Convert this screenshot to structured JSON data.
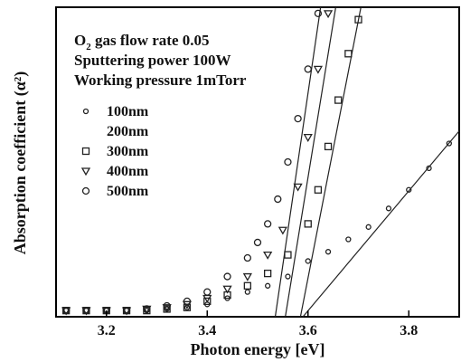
{
  "chart_data": {
    "type": "scatter",
    "title": "",
    "xlabel": "Photon energy [eV]",
    "ylabel": "Absorption coefficient (α²)",
    "xlim": [
      3.1,
      3.9
    ],
    "ylim": [
      0,
      1
    ],
    "x_ticks": [
      3.2,
      3.4,
      3.6,
      3.8
    ],
    "x_tick_labels": [
      "3.2",
      "3.4",
      "3.6",
      "3.8"
    ],
    "grid": false,
    "legend_position": "upper-left",
    "annotations": [
      {
        "prefix": "O",
        "subscript": "2",
        "suffix": " gas flow rate 0.05"
      },
      {
        "text": "Sputtering power 100W"
      },
      {
        "text": "Working pressure 1mTorr"
      }
    ],
    "series": [
      {
        "name": "100nm",
        "marker": "circle-small",
        "x": [
          3.12,
          3.16,
          3.2,
          3.24,
          3.28,
          3.32,
          3.36,
          3.4,
          3.44,
          3.48,
          3.52,
          3.56,
          3.6,
          3.64,
          3.68,
          3.72,
          3.76,
          3.8,
          3.84,
          3.88
        ],
        "y": [
          0.02,
          0.02,
          0.02,
          0.02,
          0.02,
          0.025,
          0.03,
          0.04,
          0.06,
          0.08,
          0.1,
          0.13,
          0.18,
          0.21,
          0.25,
          0.29,
          0.35,
          0.41,
          0.48,
          0.56
        ],
        "fit_line": {
          "x": [
            3.59,
            3.9
          ],
          "y": [
            0.0,
            0.6
          ]
        }
      },
      {
        "name": "200nm",
        "marker": "none",
        "x": [],
        "y": []
      },
      {
        "name": "300nm",
        "marker": "square",
        "x": [
          3.12,
          3.16,
          3.2,
          3.24,
          3.28,
          3.32,
          3.36,
          3.4,
          3.44,
          3.48,
          3.52,
          3.56,
          3.6,
          3.62,
          3.64,
          3.66,
          3.68,
          3.7
        ],
        "y": [
          0.02,
          0.02,
          0.02,
          0.02,
          0.02,
          0.025,
          0.03,
          0.05,
          0.07,
          0.1,
          0.14,
          0.2,
          0.3,
          0.41,
          0.55,
          0.7,
          0.85,
          0.96
        ],
        "fit_line": {
          "x": [
            3.585,
            3.705
          ],
          "y": [
            0.0,
            1.0
          ]
        }
      },
      {
        "name": "400nm",
        "marker": "triangle-down",
        "x": [
          3.12,
          3.16,
          3.2,
          3.24,
          3.28,
          3.32,
          3.36,
          3.4,
          3.44,
          3.48,
          3.52,
          3.55,
          3.58,
          3.6,
          3.62,
          3.64
        ],
        "y": [
          0.02,
          0.02,
          0.02,
          0.02,
          0.025,
          0.03,
          0.04,
          0.06,
          0.09,
          0.13,
          0.2,
          0.28,
          0.42,
          0.58,
          0.8,
          0.98
        ],
        "fit_line": {
          "x": [
            3.555,
            3.655
          ],
          "y": [
            0.0,
            1.0
          ]
        }
      },
      {
        "name": "500nm",
        "marker": "circle",
        "x": [
          3.12,
          3.16,
          3.2,
          3.24,
          3.28,
          3.32,
          3.36,
          3.4,
          3.44,
          3.48,
          3.5,
          3.52,
          3.54,
          3.56,
          3.58,
          3.6,
          3.62
        ],
        "y": [
          0.02,
          0.02,
          0.02,
          0.02,
          0.025,
          0.035,
          0.05,
          0.08,
          0.13,
          0.19,
          0.24,
          0.3,
          0.38,
          0.5,
          0.64,
          0.8,
          0.98
        ],
        "fit_line": {
          "x": [
            3.535,
            3.625
          ],
          "y": [
            0.0,
            1.0
          ]
        }
      }
    ]
  }
}
